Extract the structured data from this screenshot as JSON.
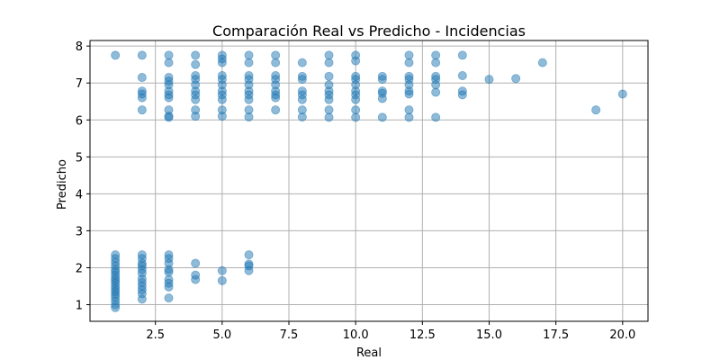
{
  "chart_data": {
    "type": "scatter",
    "title": "Comparación Real vs Predicho - Incidencias",
    "xlabel": "Real",
    "ylabel": "Predicho",
    "xlim": [
      0.05,
      20.95
    ],
    "ylim": [
      0.55,
      8.15
    ],
    "xticks": [
      2.5,
      5.0,
      7.5,
      10.0,
      12.5,
      15.0,
      17.5,
      20.0
    ],
    "xtick_labels": [
      "2.5",
      "5.0",
      "7.5",
      "10.0",
      "12.5",
      "15.0",
      "17.5",
      "20.0"
    ],
    "yticks": [
      1,
      2,
      3,
      4,
      5,
      6,
      7,
      8
    ],
    "ytick_labels": [
      "1",
      "2",
      "3",
      "4",
      "5",
      "6",
      "7",
      "8"
    ],
    "grid": true,
    "marker_color": "#1f77b4",
    "marker_alpha": 0.5,
    "points": [
      [
        1,
        7.75
      ],
      [
        1,
        2.35
      ],
      [
        1,
        2.25
      ],
      [
        1,
        2.15
      ],
      [
        1,
        2.05
      ],
      [
        1,
        1.95
      ],
      [
        1,
        1.88
      ],
      [
        1,
        1.8
      ],
      [
        1,
        1.72
      ],
      [
        1,
        1.65
      ],
      [
        1,
        1.58
      ],
      [
        1,
        1.5
      ],
      [
        1,
        1.42
      ],
      [
        1,
        1.35
      ],
      [
        1,
        1.28
      ],
      [
        1,
        1.2
      ],
      [
        1,
        1.1
      ],
      [
        1,
        1.0
      ],
      [
        1,
        0.92
      ],
      [
        2,
        7.75
      ],
      [
        2,
        7.15
      ],
      [
        2,
        6.78
      ],
      [
        2,
        6.7
      ],
      [
        2,
        6.6
      ],
      [
        2,
        6.27
      ],
      [
        2,
        2.35
      ],
      [
        2,
        2.25
      ],
      [
        2,
        2.12
      ],
      [
        2,
        2.05
      ],
      [
        2,
        1.95
      ],
      [
        2,
        1.85
      ],
      [
        2,
        1.7
      ],
      [
        2,
        1.6
      ],
      [
        2,
        1.5
      ],
      [
        2,
        1.4
      ],
      [
        2,
        1.3
      ],
      [
        2,
        1.15
      ],
      [
        3,
        7.75
      ],
      [
        3,
        7.55
      ],
      [
        3,
        7.15
      ],
      [
        3,
        7.05
      ],
      [
        3,
        6.95
      ],
      [
        3,
        6.78
      ],
      [
        3,
        6.68
      ],
      [
        3,
        6.6
      ],
      [
        3,
        6.27
      ],
      [
        3,
        6.1
      ],
      [
        3,
        6.07
      ],
      [
        3,
        2.35
      ],
      [
        3,
        2.25
      ],
      [
        3,
        2.12
      ],
      [
        3,
        1.95
      ],
      [
        3,
        1.88
      ],
      [
        3,
        1.68
      ],
      [
        3,
        1.58
      ],
      [
        3,
        1.48
      ],
      [
        3,
        1.18
      ],
      [
        4,
        7.75
      ],
      [
        4,
        7.5
      ],
      [
        4,
        7.2
      ],
      [
        4,
        7.1
      ],
      [
        4,
        6.95
      ],
      [
        4,
        6.78
      ],
      [
        4,
        6.68
      ],
      [
        4,
        6.55
      ],
      [
        4,
        6.27
      ],
      [
        4,
        6.1
      ],
      [
        4,
        2.12
      ],
      [
        4,
        1.8
      ],
      [
        4,
        1.68
      ],
      [
        5,
        7.75
      ],
      [
        5,
        7.65
      ],
      [
        5,
        7.55
      ],
      [
        5,
        7.2
      ],
      [
        5,
        7.1
      ],
      [
        5,
        6.95
      ],
      [
        5,
        6.78
      ],
      [
        5,
        6.68
      ],
      [
        5,
        6.55
      ],
      [
        5,
        6.27
      ],
      [
        5,
        6.1
      ],
      [
        5,
        1.92
      ],
      [
        5,
        1.65
      ],
      [
        6,
        7.75
      ],
      [
        6,
        7.55
      ],
      [
        6,
        7.2
      ],
      [
        6,
        7.1
      ],
      [
        6,
        6.95
      ],
      [
        6,
        6.78
      ],
      [
        6,
        6.68
      ],
      [
        6,
        6.55
      ],
      [
        6,
        6.27
      ],
      [
        6,
        6.08
      ],
      [
        6,
        2.35
      ],
      [
        6,
        2.1
      ],
      [
        6,
        2.05
      ],
      [
        6,
        1.92
      ],
      [
        7,
        7.75
      ],
      [
        7,
        7.55
      ],
      [
        7,
        7.2
      ],
      [
        7,
        7.1
      ],
      [
        7,
        6.95
      ],
      [
        7,
        6.78
      ],
      [
        7,
        6.68
      ],
      [
        7,
        6.6
      ],
      [
        7,
        6.27
      ],
      [
        8,
        7.55
      ],
      [
        8,
        7.18
      ],
      [
        8,
        7.1
      ],
      [
        8,
        6.78
      ],
      [
        8,
        6.68
      ],
      [
        8,
        6.55
      ],
      [
        8,
        6.27
      ],
      [
        8,
        6.08
      ],
      [
        9,
        7.75
      ],
      [
        9,
        7.55
      ],
      [
        9,
        7.18
      ],
      [
        9,
        6.95
      ],
      [
        9,
        6.78
      ],
      [
        9,
        6.68
      ],
      [
        9,
        6.55
      ],
      [
        9,
        6.27
      ],
      [
        9,
        6.07
      ],
      [
        10,
        7.75
      ],
      [
        10,
        7.6
      ],
      [
        10,
        7.18
      ],
      [
        10,
        7.1
      ],
      [
        10,
        6.95
      ],
      [
        10,
        6.78
      ],
      [
        10,
        6.68
      ],
      [
        10,
        6.55
      ],
      [
        10,
        6.27
      ],
      [
        10,
        6.07
      ],
      [
        11,
        7.18
      ],
      [
        11,
        7.1
      ],
      [
        11,
        6.78
      ],
      [
        11,
        6.72
      ],
      [
        11,
        6.58
      ],
      [
        11,
        6.07
      ],
      [
        12,
        7.75
      ],
      [
        12,
        7.55
      ],
      [
        12,
        7.18
      ],
      [
        12,
        7.1
      ],
      [
        12,
        6.95
      ],
      [
        12,
        6.78
      ],
      [
        12,
        6.7
      ],
      [
        12,
        6.27
      ],
      [
        12,
        6.07
      ],
      [
        13,
        7.75
      ],
      [
        13,
        7.55
      ],
      [
        13,
        7.18
      ],
      [
        13,
        7.1
      ],
      [
        13,
        6.95
      ],
      [
        13,
        6.75
      ],
      [
        13,
        6.07
      ],
      [
        14,
        7.75
      ],
      [
        14,
        7.2
      ],
      [
        14,
        6.78
      ],
      [
        14,
        6.68
      ],
      [
        15,
        7.1
      ],
      [
        16,
        7.12
      ],
      [
        17,
        7.55
      ],
      [
        19,
        6.27
      ],
      [
        20,
        6.7
      ]
    ]
  }
}
